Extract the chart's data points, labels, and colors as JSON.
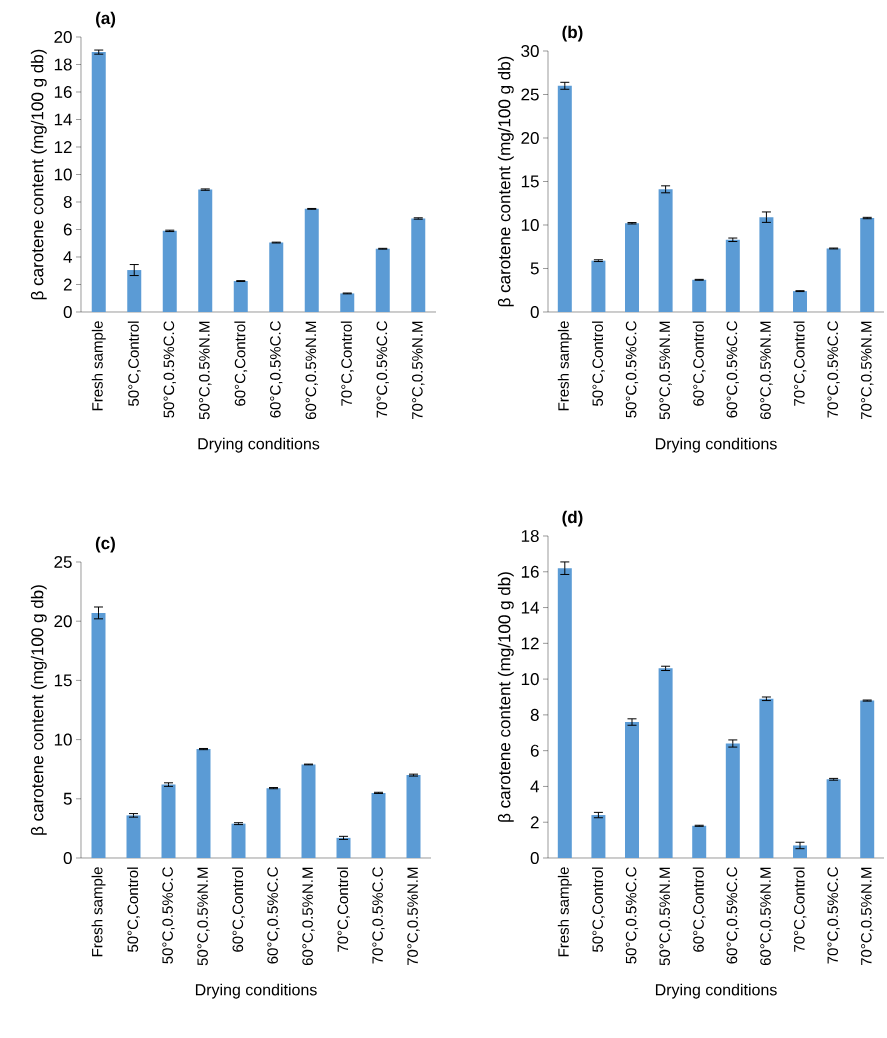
{
  "chart_data": [
    {
      "type": "bar",
      "title": "(a)",
      "xlabel": "Drying conditions",
      "ylabel": "β carotene content (mg/100 g db)",
      "categories": [
        "Fresh sample",
        "50°C,Control",
        "50°C,0.5%C.C",
        "50°C,0.5%N.M",
        "60°C,Control",
        "60°C,0.5%C.C",
        "60°C,0.5%N.M",
        "70°C,Control",
        "70°C,0.5%C.C",
        "70°C,0.5%N.M"
      ],
      "values": [
        18.9,
        3.05,
        5.9,
        8.9,
        2.25,
        5.05,
        7.5,
        1.35,
        4.6,
        6.8
      ],
      "errors": [
        0.15,
        0.4,
        0.05,
        0.05,
        0.03,
        0.03,
        0.03,
        0.03,
        0.03,
        0.05
      ],
      "color": "#5b9bd5",
      "ylim": [
        0,
        20
      ],
      "yticks": [
        0,
        2,
        4,
        6,
        8,
        10,
        12,
        14,
        16,
        18,
        20
      ]
    },
    {
      "type": "bar",
      "title": "(b)",
      "xlabel": "Drying conditions",
      "ylabel": "β carotene content (mg/100 g db)",
      "categories": [
        "Fresh sample",
        "50°C,Control",
        "50°C,0.5%C.C",
        "50°C,0.5%N.M",
        "60°C,Control",
        "60°C,0.5%C.C",
        "60°C,0.5%N.M",
        "70°C,Control",
        "70°C,0.5%C.C",
        "70°C,0.5%N.M"
      ],
      "values": [
        26.0,
        5.9,
        10.2,
        14.1,
        3.7,
        8.3,
        10.9,
        2.4,
        7.3,
        10.8
      ],
      "errors": [
        0.4,
        0.1,
        0.08,
        0.4,
        0.05,
        0.2,
        0.6,
        0.05,
        0.05,
        0.08
      ],
      "color": "#5b9bd5",
      "ylim": [
        0,
        30
      ],
      "yticks": [
        0,
        5,
        10,
        15,
        20,
        25,
        30
      ]
    },
    {
      "type": "bar",
      "title": "(c)",
      "xlabel": "Drying conditions",
      "ylabel": "β carotene content (mg/100 g db)",
      "categories": [
        "Fresh sample",
        "50°C,Control",
        "50°C,0.5%C.C",
        "50°C,0.5%N.M",
        "60°C,Control",
        "60°C,0.5%C.C",
        "60°C,0.5%N.M",
        "70°C,Control",
        "70°C,0.5%C.C",
        "70°C,0.5%N.M"
      ],
      "values": [
        20.7,
        3.6,
        6.2,
        9.2,
        2.9,
        5.9,
        7.9,
        1.7,
        5.5,
        7.0
      ],
      "errors": [
        0.5,
        0.15,
        0.15,
        0.05,
        0.08,
        0.05,
        0.03,
        0.13,
        0.05,
        0.08
      ],
      "color": "#5b9bd5",
      "ylim": [
        0,
        25
      ],
      "yticks": [
        0,
        5,
        10,
        15,
        20,
        25
      ]
    },
    {
      "type": "bar",
      "title": "(d)",
      "xlabel": "Drying conditions",
      "ylabel": "β carotene content (mg/100 g db)",
      "categories": [
        "Fresh sample",
        "50°C,Control",
        "50°C,0.5%C.C",
        "50°C,0.5%N.M",
        "60°C,Control",
        "60°C,0.5%C.C",
        "60°C,0.5%N.M",
        "70°C,Control",
        "70°C,0.5%C.C",
        "70°C,0.5%N.M"
      ],
      "values": [
        16.2,
        2.4,
        7.6,
        10.6,
        1.8,
        6.4,
        8.9,
        0.7,
        4.4,
        8.8
      ],
      "errors": [
        0.35,
        0.15,
        0.18,
        0.12,
        0.03,
        0.2,
        0.1,
        0.18,
        0.05,
        0.03
      ],
      "color": "#5b9bd5",
      "ylim": [
        0,
        18
      ],
      "yticks": [
        0,
        2,
        4,
        6,
        8,
        10,
        12,
        14,
        16,
        18
      ]
    }
  ]
}
